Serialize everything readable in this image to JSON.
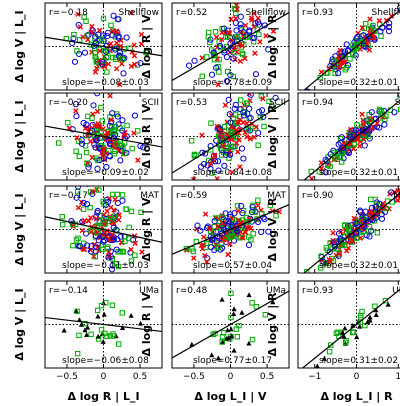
{
  "chart_data": {
    "type": "scatter",
    "layout": {
      "rows": 4,
      "cols": 3
    },
    "datasets": [
      "Shellflow",
      "SCII",
      "MAT",
      "UMa"
    ],
    "series": [
      {
        "marker": "circle",
        "color": "#0000cc"
      },
      {
        "marker": "square",
        "color": "#00aa00"
      },
      {
        "marker": "x",
        "color": "#ee0000"
      },
      {
        "marker": "triangle",
        "color": "#000000"
      }
    ],
    "columns": [
      {
        "xlabel": "Δ log R | L_I",
        "ylabel": "Δ log V | L_I",
        "xlim": [
          -0.8,
          0.8
        ],
        "ylim": [
          -0.3,
          0.3
        ],
        "xticks": [
          -0.5,
          0,
          0.5
        ],
        "xtick_labels": [
          "−0.5",
          "0",
          "0.5"
        ]
      },
      {
        "xlabel": "Δ log L_I | V",
        "ylabel": "Δ log R | V",
        "xlim": [
          -0.8,
          0.8
        ],
        "ylim": [
          -0.8,
          0.8
        ],
        "xticks": [
          -0.5,
          0,
          0.5
        ],
        "xtick_labels": [
          "−0.5",
          "0",
          "0.5"
        ]
      },
      {
        "xlabel": "Δ log L_I | R",
        "ylabel": "Δ log V | R",
        "xlim": [
          -1.4,
          1.4
        ],
        "ylim": [
          -0.4,
          0.4
        ],
        "xticks": [
          -1,
          0,
          1
        ],
        "xtick_labels": [
          "−1",
          "0",
          "1"
        ]
      }
    ],
    "panels": [
      {
        "row": 0,
        "col": 0,
        "dataset": "Shellflow",
        "r_label": "r=−0.18",
        "slope_label": "slope=−0.08±0.03",
        "slope": -0.08,
        "intercept": 0.0,
        "n": 120,
        "series": [
          0,
          1,
          2
        ]
      },
      {
        "row": 0,
        "col": 1,
        "dataset": "Shellflow",
        "r_label": "r=0.52",
        "slope_label": "slope=0.78±0.09",
        "slope": 0.78,
        "intercept": 0.0,
        "n": 120,
        "series": [
          0,
          1,
          2
        ]
      },
      {
        "row": 0,
        "col": 2,
        "dataset": "Shellflow",
        "r_label": "r=0.93",
        "slope_label": "slope=0.32±0.01",
        "slope": 0.32,
        "intercept": 0.0,
        "n": 120,
        "series": [
          0,
          1,
          2
        ]
      },
      {
        "row": 1,
        "col": 0,
        "dataset": "SCII",
        "r_label": "r=−0.20",
        "slope_label": "slope=−0.09±0.02",
        "slope": -0.09,
        "intercept": 0.0,
        "n": 160,
        "series": [
          0,
          1,
          2
        ]
      },
      {
        "row": 1,
        "col": 1,
        "dataset": "SCII",
        "r_label": "r=0.53",
        "slope_label": "slope=0.84±0.08",
        "slope": 0.84,
        "intercept": 0.0,
        "n": 160,
        "series": [
          0,
          1,
          2
        ]
      },
      {
        "row": 1,
        "col": 2,
        "dataset": "SCII",
        "r_label": "r=0.94",
        "slope_label": "slope=0.32±0.01",
        "slope": 0.32,
        "intercept": 0.0,
        "n": 160,
        "series": [
          0,
          1,
          2
        ]
      },
      {
        "row": 2,
        "col": 0,
        "dataset": "MAT",
        "r_label": "r=−0.17",
        "slope_label": "slope=−0.11±0.03",
        "slope": -0.11,
        "intercept": 0.0,
        "n": 180,
        "series": [
          0,
          1,
          2
        ]
      },
      {
        "row": 2,
        "col": 1,
        "dataset": "MAT",
        "r_label": "r=0.59",
        "slope_label": "slope=0.57±0.04",
        "slope": 0.57,
        "intercept": 0.0,
        "n": 180,
        "series": [
          0,
          1,
          2
        ]
      },
      {
        "row": 2,
        "col": 2,
        "dataset": "MAT",
        "r_label": "r=0.90",
        "slope_label": "slope=0.32±0.01",
        "slope": 0.32,
        "intercept": 0.0,
        "n": 180,
        "series": [
          0,
          1,
          2
        ]
      },
      {
        "row": 3,
        "col": 0,
        "dataset": "UMa",
        "r_label": "r=−0.14",
        "slope_label": "slope=−0.06±0.08",
        "slope": -0.06,
        "intercept": 0.0,
        "n": 35,
        "series": [
          1,
          3
        ]
      },
      {
        "row": 3,
        "col": 1,
        "dataset": "UMa",
        "r_label": "r=0.48",
        "slope_label": "slope=0.77±0.17",
        "slope": 0.77,
        "intercept": 0.0,
        "n": 35,
        "series": [
          1,
          3
        ]
      },
      {
        "row": 3,
        "col": 2,
        "dataset": "UMa",
        "r_label": "r=0.93",
        "slope_label": "slope=0.31±0.02",
        "slope": 0.31,
        "intercept": 0.0,
        "n": 35,
        "series": [
          1,
          3
        ]
      }
    ]
  }
}
